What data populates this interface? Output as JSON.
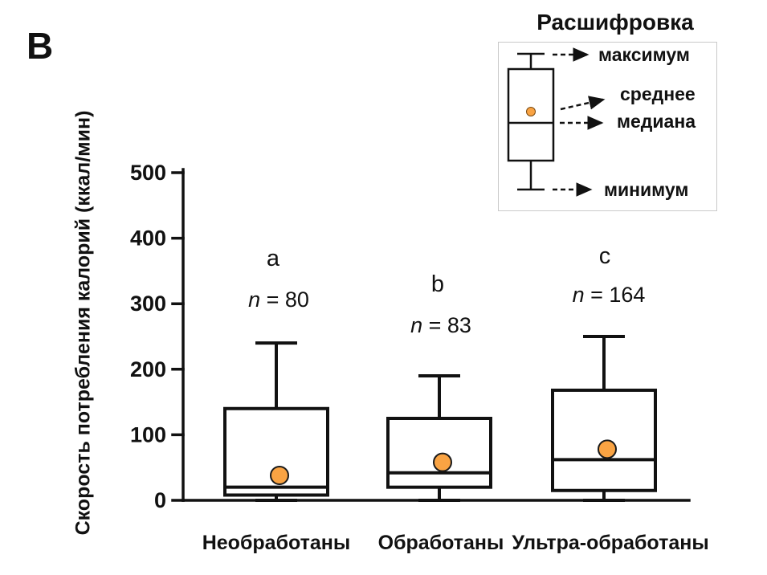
{
  "panel_label": "В",
  "legend": {
    "title": "Расшифровка",
    "items": [
      {
        "id": "maximum",
        "label": "максимум"
      },
      {
        "id": "mean",
        "label": "среднее"
      },
      {
        "id": "median",
        "label": "медиана"
      },
      {
        "id": "minimum",
        "label": "минимум"
      }
    ]
  },
  "chart_data": {
    "type": "boxplot",
    "title": "",
    "ylabel": "Скорость потребления калорий (ккал/мин)",
    "xlabel": "",
    "ylim": [
      0,
      500
    ],
    "yticks": [
      0,
      100,
      200,
      300,
      400,
      500
    ],
    "grid": false,
    "legend_position": "top-right",
    "mean_marker_color": "#F9A343",
    "box_fill_color": "#ffffff",
    "line_color": "#111111",
    "categories": [
      "Необработаны",
      "Обработаны",
      "Ультра-обработаны"
    ],
    "series": [
      {
        "category": "Необработаны",
        "sig_letter": "a",
        "n": 80,
        "n_text": "n = 80",
        "min": 0,
        "q1": 8,
        "median": 20,
        "q3": 140,
        "max": 240,
        "mean": 38
      },
      {
        "category": "Обработаны",
        "sig_letter": "b",
        "n": 83,
        "n_text": "n = 83",
        "min": 0,
        "q1": 20,
        "median": 42,
        "q3": 125,
        "max": 190,
        "mean": 58
      },
      {
        "category": "Ультра-обработаны",
        "sig_letter": "c",
        "n": 164,
        "n_text": "n = 164",
        "min": 0,
        "q1": 15,
        "median": 62,
        "q3": 168,
        "max": 250,
        "mean": 78
      }
    ]
  }
}
